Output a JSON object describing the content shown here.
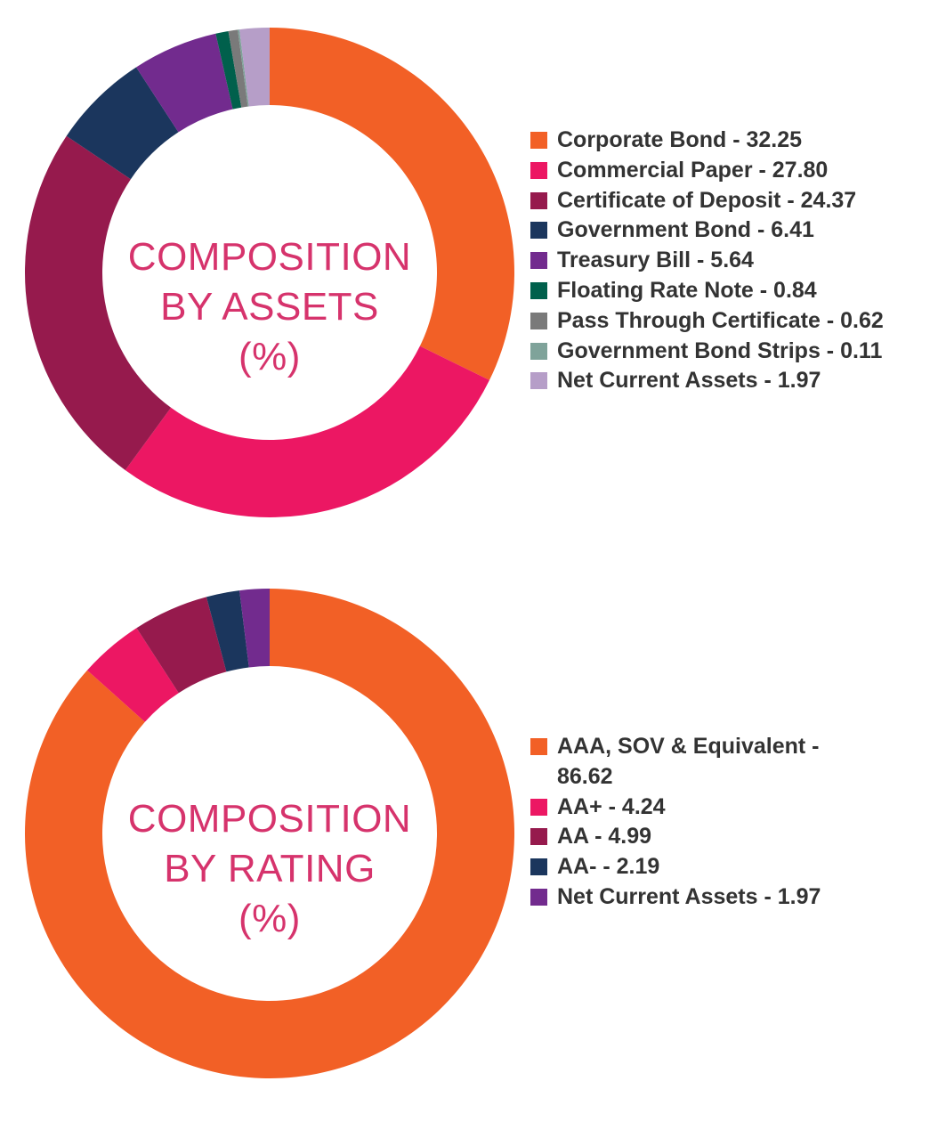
{
  "chart_data": [
    {
      "type": "pie",
      "donut": true,
      "center_label": [
        "COMPOSITION",
        "BY ASSETS",
        "(%)"
      ],
      "start_angle": "top",
      "direction": "clockwise",
      "legend_position": "right",
      "categories": [
        "Corporate Bond",
        "Commercial Paper",
        "Certificate of Deposit",
        "Government Bond",
        "Treasury Bill",
        "Floating Rate Note",
        "Pass Through Certificate",
        "Government Bond Strips",
        "Net Current Assets"
      ],
      "values": [
        32.25,
        27.8,
        24.37,
        6.41,
        5.64,
        0.84,
        0.62,
        0.11,
        1.97
      ],
      "legend_labels": [
        "Corporate Bond - 32.25",
        "Commercial Paper - 27.80",
        "Certificate of Deposit - 24.37",
        "Government Bond - 6.41",
        "Treasury Bill - 5.64",
        "Floating Rate Note - 0.84",
        "Pass Through Certificate - 0.62",
        "Government Bond Strips - 0.11",
        "Net Current Assets - 1.97"
      ],
      "colors": [
        "#f26026",
        "#ec1763",
        "#961a4d",
        "#1b365d",
        "#722b8e",
        "#00604c",
        "#7a7a7a",
        "#7fa39a",
        "#b69ec8"
      ]
    },
    {
      "type": "pie",
      "donut": true,
      "center_label": [
        "COMPOSITION",
        "BY RATING",
        "(%)"
      ],
      "start_angle": "top",
      "direction": "clockwise",
      "legend_position": "right",
      "categories": [
        "AAA, SOV & Equivalent",
        "AA+",
        "AA",
        "AA-",
        "Net Current Assets"
      ],
      "values": [
        86.62,
        4.24,
        4.99,
        2.19,
        1.97
      ],
      "legend_labels": [
        "AAA, SOV & Equivalent - 86.62",
        "AA+ - 4.24",
        "AA - 4.99",
        "AA- - 2.19",
        "Net Current Assets - 1.97"
      ],
      "colors": [
        "#f26026",
        "#ec1763",
        "#961a4d",
        "#1b365d",
        "#722b8e"
      ]
    }
  ],
  "theme": {
    "center_label_color": "#d6336c",
    "legend_text_color": "#333333"
  }
}
